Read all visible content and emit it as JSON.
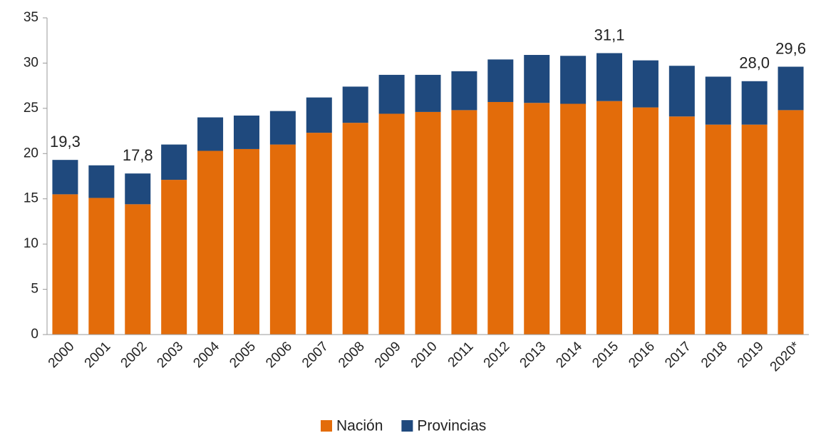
{
  "chart_data": {
    "type": "stacked_bar",
    "categories": [
      "2000",
      "2001",
      "2002",
      "2003",
      "2004",
      "2005",
      "2006",
      "2007",
      "2008",
      "2009",
      "2010",
      "2011",
      "2012",
      "2013",
      "2014",
      "2015",
      "2016",
      "2017",
      "2018",
      "2019",
      "2020*"
    ],
    "series": [
      {
        "name": "Nación",
        "color": "#e36c0a",
        "values": [
          15.5,
          15.1,
          14.4,
          17.1,
          20.3,
          20.5,
          21.0,
          22.3,
          23.4,
          24.4,
          24.6,
          24.8,
          25.7,
          25.6,
          25.5,
          25.8,
          25.1,
          24.1,
          23.2,
          23.2,
          24.8
        ]
      },
      {
        "name": "Provincias",
        "color": "#1f497d",
        "values": [
          3.8,
          3.6,
          3.4,
          3.9,
          3.7,
          3.7,
          3.7,
          3.9,
          4.0,
          4.3,
          4.1,
          4.3,
          4.7,
          5.3,
          5.3,
          5.3,
          5.2,
          5.6,
          5.3,
          4.8,
          4.8
        ]
      }
    ],
    "data_labels": [
      {
        "category": "2000",
        "value": 19.3,
        "label": "19,3"
      },
      {
        "category": "2002",
        "value": 17.8,
        "label": "17,8"
      },
      {
        "category": "2015",
        "value": 31.1,
        "label": "31,1"
      },
      {
        "category": "2019",
        "value": 28.0,
        "label": "28,0"
      },
      {
        "category": "2020*",
        "value": 29.6,
        "label": "29,6"
      }
    ],
    "ylim": [
      0,
      35
    ],
    "yticks": [
      0,
      5,
      10,
      15,
      20,
      25,
      30,
      35
    ],
    "grid": false,
    "legend": "bottom"
  }
}
